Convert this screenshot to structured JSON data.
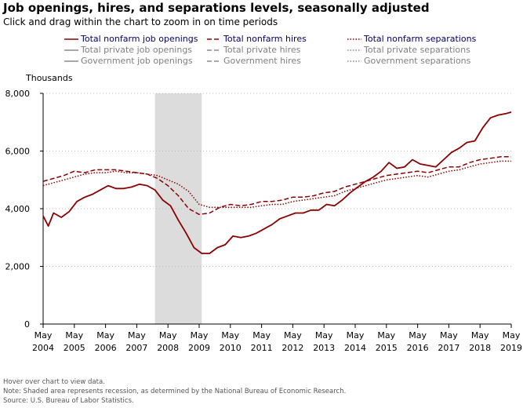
{
  "title": "Job openings, hires, and separations levels, seasonally adjusted",
  "subtitle": "Click and drag within the chart to zoom in on time periods",
  "legend": [
    {
      "label": "Total nonfarm job openings",
      "style": "solid",
      "selected": true,
      "color": "#8b0000"
    },
    {
      "label": "Total nonfarm hires",
      "style": "dashed",
      "selected": true,
      "color": "#8b0000"
    },
    {
      "label": "Total nonfarm separations",
      "style": "dotted",
      "selected": true,
      "color": "#8b0000"
    },
    {
      "label": "Total private job openings",
      "style": "solid",
      "selected": false,
      "color": "#8c8c8c"
    },
    {
      "label": "Total private hires",
      "style": "dashed",
      "selected": false,
      "color": "#8c8c8c"
    },
    {
      "label": "Total private separations",
      "style": "dotted",
      "selected": false,
      "color": "#8c8c8c"
    },
    {
      "label": "Government job openings",
      "style": "solid",
      "selected": false,
      "color": "#8c8c8c"
    },
    {
      "label": "Government hires",
      "style": "dashed",
      "selected": false,
      "color": "#8c8c8c"
    },
    {
      "label": "Government separations",
      "style": "dotted",
      "selected": false,
      "color": "#8c8c8c"
    }
  ],
  "notes": {
    "hover": "Hover over chart to view data.",
    "note": "Note: Shaded area represents recession, as determined by the National Bureau of Economic Research.",
    "source": "Source: U.S. Bureau of Labor Statistics."
  },
  "chart_data": {
    "type": "line",
    "title": "Job openings, hires, and separations levels, seasonally adjusted",
    "ylabel": "Thousands",
    "ylim": [
      0,
      8000
    ],
    "yticks": [
      0,
      2000,
      4000,
      6000,
      8000
    ],
    "ytick_labels": [
      "0",
      "2,000",
      "4,000",
      "6,000",
      "8,000"
    ],
    "xlim": [
      "2004-05",
      "2019-05"
    ],
    "xticks": [
      {
        "x": "2004-05",
        "label": [
          "May",
          "2004"
        ]
      },
      {
        "x": "2005-05",
        "label": [
          "May",
          "2005"
        ]
      },
      {
        "x": "2006-05",
        "label": [
          "May",
          "2006"
        ]
      },
      {
        "x": "2007-05",
        "label": [
          "May",
          "2007"
        ]
      },
      {
        "x": "2008-05",
        "label": [
          "May",
          "2008"
        ]
      },
      {
        "x": "2009-05",
        "label": [
          "May",
          "2009"
        ]
      },
      {
        "x": "2010-05",
        "label": [
          "May",
          "2010"
        ]
      },
      {
        "x": "2011-05",
        "label": [
          "May",
          "2011"
        ]
      },
      {
        "x": "2012-05",
        "label": [
          "May",
          "2012"
        ]
      },
      {
        "x": "2013-05",
        "label": [
          "May",
          "2013"
        ]
      },
      {
        "x": "2014-05",
        "label": [
          "May",
          "2014"
        ]
      },
      {
        "x": "2015-05",
        "label": [
          "May",
          "2015"
        ]
      },
      {
        "x": "2016-05",
        "label": [
          "May",
          "2016"
        ]
      },
      {
        "x": "2017-05",
        "label": [
          "May",
          "2017"
        ]
      },
      {
        "x": "2018-05",
        "label": [
          "May",
          "2018"
        ]
      },
      {
        "x": "2019-05",
        "label": [
          "May",
          "2019"
        ]
      }
    ],
    "grid": "horizontal dotted",
    "recession": [
      "2007-12",
      "2009-06"
    ],
    "series": [
      {
        "name": "Total nonfarm job openings",
        "style": "solid",
        "color": "#8b0000",
        "x": [
          "2004-05",
          "2004-07",
          "2004-09",
          "2004-12",
          "2005-03",
          "2005-06",
          "2005-09",
          "2005-12",
          "2006-03",
          "2006-06",
          "2006-09",
          "2006-12",
          "2007-03",
          "2007-06",
          "2007-09",
          "2007-12",
          "2008-03",
          "2008-06",
          "2008-09",
          "2008-12",
          "2009-03",
          "2009-06",
          "2009-09",
          "2009-12",
          "2010-03",
          "2010-06",
          "2010-09",
          "2010-12",
          "2011-03",
          "2011-06",
          "2011-09",
          "2011-12",
          "2012-03",
          "2012-06",
          "2012-09",
          "2012-12",
          "2013-03",
          "2013-06",
          "2013-09",
          "2013-12",
          "2014-03",
          "2014-06",
          "2014-09",
          "2014-12",
          "2015-03",
          "2015-06",
          "2015-09",
          "2015-12",
          "2016-03",
          "2016-06",
          "2016-09",
          "2016-12",
          "2017-03",
          "2017-06",
          "2017-09",
          "2017-12",
          "2018-03",
          "2018-06",
          "2018-09",
          "2018-12",
          "2019-03",
          "2019-05"
        ],
        "values": [
          3750,
          3400,
          3850,
          3700,
          3900,
          4250,
          4400,
          4500,
          4650,
          4800,
          4700,
          4700,
          4750,
          4850,
          4800,
          4650,
          4300,
          4100,
          3600,
          3150,
          2650,
          2450,
          2450,
          2650,
          2750,
          3050,
          3000,
          3050,
          3150,
          3300,
          3450,
          3650,
          3750,
          3850,
          3850,
          3950,
          3950,
          4150,
          4100,
          4300,
          4550,
          4750,
          4950,
          5100,
          5300,
          5600,
          5400,
          5450,
          5700,
          5550,
          5500,
          5450,
          5700,
          5950,
          6100,
          6300,
          6350,
          6800,
          7150,
          7250,
          7300,
          7350
        ]
      },
      {
        "name": "Total nonfarm hires",
        "style": "dashed",
        "color": "#8b0000",
        "x": [
          "2004-05",
          "2004-09",
          "2005-01",
          "2005-05",
          "2005-09",
          "2006-01",
          "2006-05",
          "2006-09",
          "2007-01",
          "2007-05",
          "2007-09",
          "2008-01",
          "2008-05",
          "2008-09",
          "2009-01",
          "2009-05",
          "2009-09",
          "2010-01",
          "2010-05",
          "2010-09",
          "2011-01",
          "2011-05",
          "2011-09",
          "2012-01",
          "2012-05",
          "2012-09",
          "2013-01",
          "2013-05",
          "2013-09",
          "2014-01",
          "2014-05",
          "2014-09",
          "2015-01",
          "2015-05",
          "2015-09",
          "2016-01",
          "2016-05",
          "2016-09",
          "2017-01",
          "2017-05",
          "2017-09",
          "2018-01",
          "2018-05",
          "2018-09",
          "2019-01",
          "2019-05"
        ],
        "values": [
          4950,
          5050,
          5150,
          5300,
          5250,
          5350,
          5350,
          5350,
          5300,
          5250,
          5200,
          5050,
          4800,
          4450,
          4000,
          3800,
          3850,
          4050,
          4150,
          4100,
          4150,
          4250,
          4250,
          4300,
          4400,
          4400,
          4450,
          4550,
          4600,
          4750,
          4850,
          4950,
          5050,
          5150,
          5200,
          5250,
          5300,
          5250,
          5350,
          5450,
          5450,
          5600,
          5700,
          5750,
          5800,
          5800
        ]
      },
      {
        "name": "Total nonfarm separations",
        "style": "dotted",
        "color": "#8b0000",
        "x": [
          "2004-05",
          "2004-09",
          "2005-01",
          "2005-05",
          "2005-09",
          "2006-01",
          "2006-05",
          "2006-09",
          "2007-01",
          "2007-05",
          "2007-09",
          "2008-01",
          "2008-05",
          "2008-09",
          "2009-01",
          "2009-05",
          "2009-09",
          "2010-01",
          "2010-05",
          "2010-09",
          "2011-01",
          "2011-05",
          "2011-09",
          "2012-01",
          "2012-05",
          "2012-09",
          "2013-01",
          "2013-05",
          "2013-09",
          "2014-01",
          "2014-05",
          "2014-09",
          "2015-01",
          "2015-05",
          "2015-09",
          "2016-01",
          "2016-05",
          "2016-09",
          "2017-01",
          "2017-05",
          "2017-09",
          "2018-01",
          "2018-05",
          "2018-09",
          "2019-01",
          "2019-05"
        ],
        "values": [
          4800,
          4900,
          5000,
          5100,
          5200,
          5250,
          5250,
          5300,
          5250,
          5250,
          5200,
          5150,
          5000,
          4850,
          4600,
          4150,
          4050,
          4050,
          4050,
          4050,
          4050,
          4100,
          4150,
          4150,
          4250,
          4300,
          4350,
          4400,
          4450,
          4600,
          4700,
          4800,
          4900,
          5000,
          5050,
          5100,
          5150,
          5100,
          5200,
          5300,
          5350,
          5450,
          5550,
          5600,
          5650,
          5650
        ]
      }
    ]
  }
}
